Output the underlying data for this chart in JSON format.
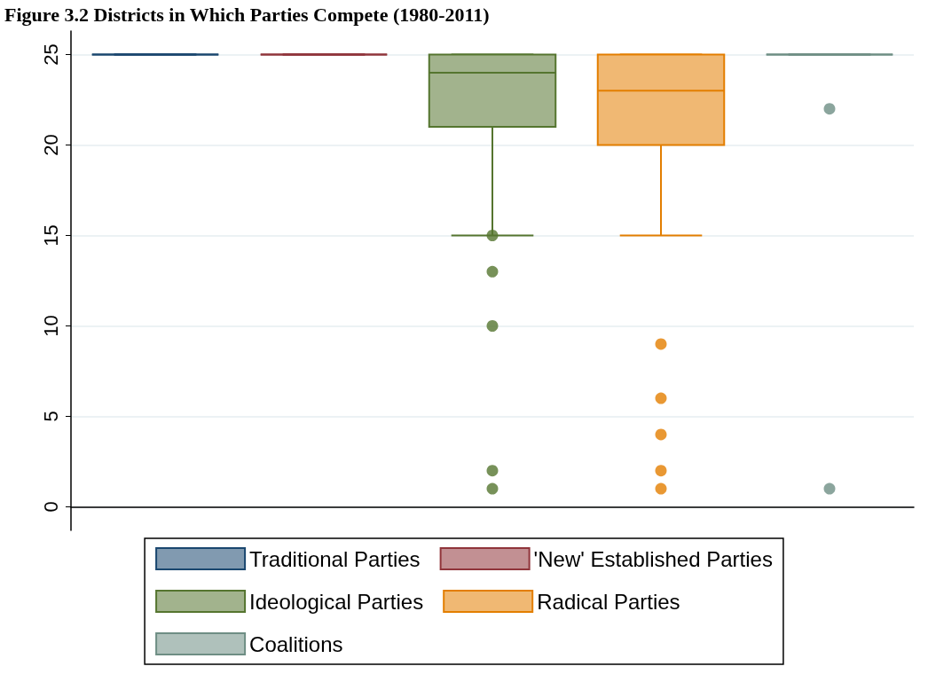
{
  "chart_data": {
    "type": "box",
    "title": "Figure 3.2 Districts in Which Parties Compete (1980-2011)",
    "categories": [
      null,
      null,
      null,
      null,
      null
    ],
    "series": [
      {
        "name": "Traditional Parties",
        "color": "#1a476f",
        "boxes": [
          {
            "low": 25,
            "q1": 25,
            "median": 25,
            "q3": 25,
            "high": 25
          },
          null,
          null,
          null,
          null
        ]
      },
      {
        "name": "'New' Established Parties",
        "color": "#90353b",
        "boxes": [
          null,
          {
            "low": 25,
            "q1": 25,
            "median": 25,
            "q3": 25,
            "high": 25
          },
          null,
          null,
          null
        ]
      },
      {
        "name": "Ideological Parties",
        "color": "#55752f",
        "boxes": [
          null,
          null,
          {
            "low": 15,
            "q1": 21,
            "median": 24,
            "q3": 25,
            "high": 25,
            "outliers": [
              15,
              13,
              10,
              2,
              1
            ]
          },
          null,
          null
        ]
      },
      {
        "name": "Radical Parties",
        "color": "#e37e00",
        "boxes": [
          null,
          null,
          null,
          {
            "low": 15,
            "q1": 20,
            "median": 23,
            "q3": 25,
            "high": 25,
            "outliers": [
              9,
              6,
              4,
              2,
              1
            ]
          },
          null
        ]
      },
      {
        "name": "Coalitions",
        "color": "#6e8e84",
        "boxes": [
          null,
          null,
          null,
          null,
          {
            "low": 25,
            "q1": 25,
            "median": 25,
            "q3": 25,
            "high": 25,
            "outliers": [
              22,
              1
            ]
          }
        ]
      }
    ],
    "ylim": [
      -1.3,
      26.3
    ],
    "yticks": [
      0,
      5,
      10,
      15,
      20,
      25
    ],
    "grid": "y",
    "legend": "bottom",
    "tick_labels": "y"
  }
}
